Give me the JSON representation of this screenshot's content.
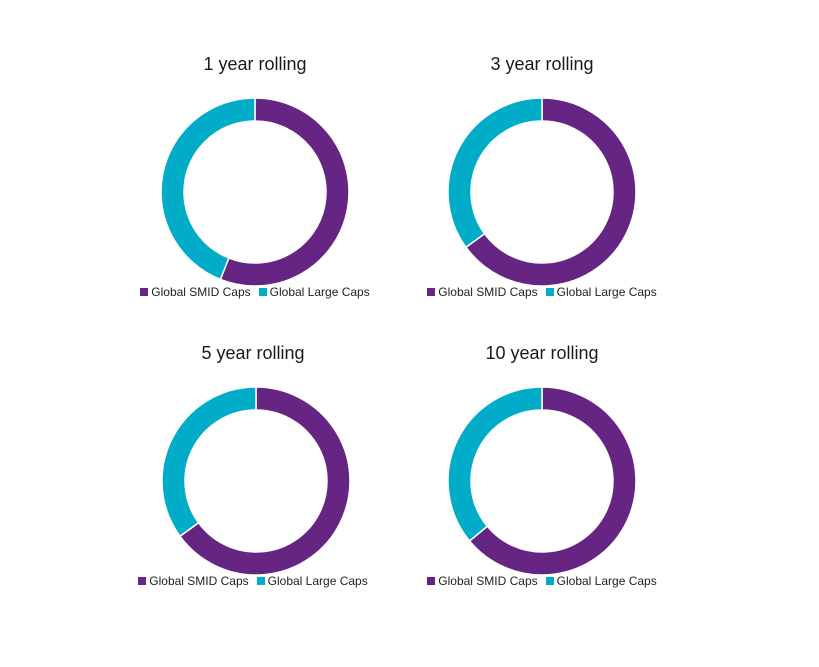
{
  "colors": {
    "smid": "#662483",
    "large": "#00acc8"
  },
  "chart_data": [
    {
      "type": "pie",
      "title": "1 year rolling",
      "categories": [
        "Global SMID Caps",
        "Global Large Caps"
      ],
      "values": [
        56,
        44
      ]
    },
    {
      "type": "pie",
      "title": "3 year rolling",
      "categories": [
        "Global SMID Caps",
        "Global Large Caps"
      ],
      "values": [
        65,
        35
      ]
    },
    {
      "type": "pie",
      "title": "5 year rolling",
      "categories": [
        "Global SMID Caps",
        "Global Large Caps"
      ],
      "values": [
        65,
        35
      ]
    },
    {
      "type": "pie",
      "title": "10 year rolling",
      "categories": [
        "Global SMID Caps",
        "Global Large Caps"
      ],
      "values": [
        64,
        36
      ]
    }
  ]
}
